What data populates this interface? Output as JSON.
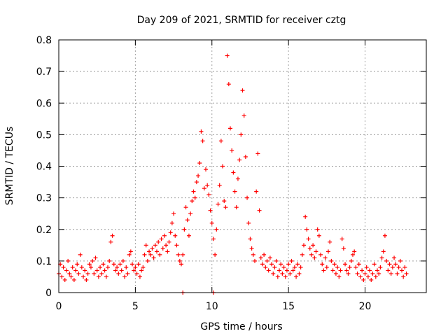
{
  "chart_data": {
    "type": "scatter",
    "title": "Day 209 of 2021, SRMTID for receiver cztg",
    "xlabel": "GPS time / hours",
    "ylabel": "SRMTID / TECUs",
    "xlim": [
      0,
      24
    ],
    "ylim": [
      0,
      0.8
    ],
    "x_ticks": [
      0,
      5,
      10,
      15,
      20
    ],
    "x_tick_labels": [
      "0",
      "5",
      "10",
      "15",
      "20"
    ],
    "y_ticks": [
      0,
      0.1,
      0.2,
      0.3,
      0.4,
      0.5,
      0.6,
      0.7,
      0.8
    ],
    "y_tick_labels": [
      "0",
      "0.1",
      "0.2",
      "0.3",
      "0.4",
      "0.5",
      "0.6",
      "0.7",
      "0.8"
    ],
    "grid": true,
    "marker": "+",
    "color": "#ff0000",
    "series": [
      {
        "name": "SRMTID",
        "points": [
          [
            0.0,
            0.06
          ],
          [
            0.1,
            0.09
          ],
          [
            0.2,
            0.05
          ],
          [
            0.3,
            0.08
          ],
          [
            0.4,
            0.04
          ],
          [
            0.5,
            0.07
          ],
          [
            0.6,
            0.1
          ],
          [
            0.7,
            0.06
          ],
          [
            0.8,
            0.05
          ],
          [
            0.9,
            0.08
          ],
          [
            1.0,
            0.04
          ],
          [
            1.1,
            0.07
          ],
          [
            1.2,
            0.09
          ],
          [
            1.3,
            0.06
          ],
          [
            1.4,
            0.12
          ],
          [
            1.5,
            0.08
          ],
          [
            1.6,
            0.05
          ],
          [
            1.7,
            0.07
          ],
          [
            1.8,
            0.04
          ],
          [
            1.9,
            0.06
          ],
          [
            2.0,
            0.09
          ],
          [
            2.1,
            0.08
          ],
          [
            2.2,
            0.1
          ],
          [
            2.3,
            0.06
          ],
          [
            2.4,
            0.11
          ],
          [
            2.5,
            0.07
          ],
          [
            2.6,
            0.05
          ],
          [
            2.7,
            0.08
          ],
          [
            2.8,
            0.06
          ],
          [
            2.9,
            0.09
          ],
          [
            3.0,
            0.07
          ],
          [
            3.1,
            0.05
          ],
          [
            3.2,
            0.08
          ],
          [
            3.3,
            0.1
          ],
          [
            3.4,
            0.16
          ],
          [
            3.5,
            0.18
          ],
          [
            3.6,
            0.09
          ],
          [
            3.7,
            0.07
          ],
          [
            3.8,
            0.08
          ],
          [
            3.9,
            0.06
          ],
          [
            4.0,
            0.09
          ],
          [
            4.1,
            0.07
          ],
          [
            4.2,
            0.1
          ],
          [
            4.3,
            0.05
          ],
          [
            4.4,
            0.08
          ],
          [
            4.5,
            0.06
          ],
          [
            4.6,
            0.12
          ],
          [
            4.7,
            0.13
          ],
          [
            4.8,
            0.09
          ],
          [
            4.9,
            0.07
          ],
          [
            5.0,
            0.08
          ],
          [
            5.1,
            0.06
          ],
          [
            5.2,
            0.09
          ],
          [
            5.3,
            0.05
          ],
          [
            5.4,
            0.07
          ],
          [
            5.5,
            0.08
          ],
          [
            5.6,
            0.12
          ],
          [
            5.7,
            0.15
          ],
          [
            5.8,
            0.1
          ],
          [
            5.9,
            0.13
          ],
          [
            6.0,
            0.12
          ],
          [
            6.1,
            0.14
          ],
          [
            6.2,
            0.11
          ],
          [
            6.3,
            0.15
          ],
          [
            6.4,
            0.13
          ],
          [
            6.5,
            0.16
          ],
          [
            6.6,
            0.12
          ],
          [
            6.7,
            0.17
          ],
          [
            6.8,
            0.14
          ],
          [
            6.9,
            0.18
          ],
          [
            7.0,
            0.15
          ],
          [
            7.1,
            0.13
          ],
          [
            7.2,
            0.16
          ],
          [
            7.3,
            0.19
          ],
          [
            7.4,
            0.22
          ],
          [
            7.5,
            0.25
          ],
          [
            7.6,
            0.18
          ],
          [
            7.7,
            0.15
          ],
          [
            7.8,
            0.12
          ],
          [
            7.9,
            0.1
          ],
          [
            8.0,
            0.09
          ],
          [
            8.1,
            0.12
          ],
          [
            8.2,
            0.2
          ],
          [
            8.3,
            0.27
          ],
          [
            8.4,
            0.23
          ],
          [
            8.5,
            0.18
          ],
          [
            8.6,
            0.25
          ],
          [
            8.7,
            0.29
          ],
          [
            8.8,
            0.32
          ],
          [
            8.9,
            0.3
          ],
          [
            9.0,
            0.35
          ],
          [
            9.1,
            0.37
          ],
          [
            9.2,
            0.41
          ],
          [
            9.3,
            0.51
          ],
          [
            9.4,
            0.48
          ],
          [
            9.5,
            0.33
          ],
          [
            9.6,
            0.39
          ],
          [
            9.7,
            0.34
          ],
          [
            9.8,
            0.31
          ],
          [
            9.9,
            0.26
          ],
          [
            10.0,
            0.22
          ],
          [
            10.1,
            0.17
          ],
          [
            10.2,
            0.12
          ],
          [
            10.3,
            0.2
          ],
          [
            10.4,
            0.28
          ],
          [
            10.5,
            0.34
          ],
          [
            10.6,
            0.48
          ],
          [
            10.7,
            0.4
          ],
          [
            10.8,
            0.29
          ],
          [
            10.9,
            0.27
          ],
          [
            11.0,
            0.75
          ],
          [
            11.1,
            0.66
          ],
          [
            11.2,
            0.52
          ],
          [
            11.3,
            0.45
          ],
          [
            11.4,
            0.38
          ],
          [
            11.5,
            0.32
          ],
          [
            11.6,
            0.27
          ],
          [
            11.7,
            0.36
          ],
          [
            11.8,
            0.42
          ],
          [
            11.9,
            0.5
          ],
          [
            12.0,
            0.64
          ],
          [
            12.1,
            0.56
          ],
          [
            12.2,
            0.43
          ],
          [
            12.3,
            0.3
          ],
          [
            12.4,
            0.22
          ],
          [
            12.5,
            0.17
          ],
          [
            12.6,
            0.14
          ],
          [
            12.7,
            0.12
          ],
          [
            12.8,
            0.1
          ],
          [
            12.9,
            0.32
          ],
          [
            13.0,
            0.44
          ],
          [
            13.1,
            0.26
          ],
          [
            13.2,
            0.11
          ],
          [
            13.3,
            0.09
          ],
          [
            13.4,
            0.12
          ],
          [
            13.5,
            0.08
          ],
          [
            13.6,
            0.1
          ],
          [
            13.7,
            0.07
          ],
          [
            13.8,
            0.11
          ],
          [
            13.9,
            0.09
          ],
          [
            14.0,
            0.06
          ],
          [
            14.1,
            0.08
          ],
          [
            14.2,
            0.1
          ],
          [
            14.3,
            0.05
          ],
          [
            14.4,
            0.07
          ],
          [
            14.5,
            0.09
          ],
          [
            14.6,
            0.06
          ],
          [
            14.7,
            0.08
          ],
          [
            14.8,
            0.05
          ],
          [
            14.9,
            0.07
          ],
          [
            15.0,
            0.09
          ],
          [
            15.1,
            0.06
          ],
          [
            15.2,
            0.1
          ],
          [
            15.3,
            0.07
          ],
          [
            15.4,
            0.08
          ],
          [
            15.5,
            0.05
          ],
          [
            15.6,
            0.09
          ],
          [
            15.7,
            0.06
          ],
          [
            15.8,
            0.08
          ],
          [
            15.9,
            0.12
          ],
          [
            16.0,
            0.15
          ],
          [
            16.1,
            0.24
          ],
          [
            16.2,
            0.2
          ],
          [
            16.3,
            0.17
          ],
          [
            16.4,
            0.14
          ],
          [
            16.5,
            0.12
          ],
          [
            16.6,
            0.15
          ],
          [
            16.7,
            0.11
          ],
          [
            16.8,
            0.13
          ],
          [
            16.9,
            0.2
          ],
          [
            17.0,
            0.18
          ],
          [
            17.1,
            0.12
          ],
          [
            17.2,
            0.09
          ],
          [
            17.3,
            0.07
          ],
          [
            17.4,
            0.11
          ],
          [
            17.5,
            0.08
          ],
          [
            17.6,
            0.13
          ],
          [
            17.7,
            0.16
          ],
          [
            17.8,
            0.1
          ],
          [
            17.9,
            0.07
          ],
          [
            18.0,
            0.09
          ],
          [
            18.1,
            0.06
          ],
          [
            18.2,
            0.08
          ],
          [
            18.3,
            0.05
          ],
          [
            18.4,
            0.07
          ],
          [
            18.5,
            0.17
          ],
          [
            18.6,
            0.14
          ],
          [
            18.7,
            0.09
          ],
          [
            18.8,
            0.07
          ],
          [
            18.9,
            0.06
          ],
          [
            19.0,
            0.08
          ],
          [
            19.1,
            0.1
          ],
          [
            19.2,
            0.12
          ],
          [
            19.3,
            0.13
          ],
          [
            19.4,
            0.08
          ],
          [
            19.5,
            0.06
          ],
          [
            19.6,
            0.09
          ],
          [
            19.7,
            0.05
          ],
          [
            19.8,
            0.07
          ],
          [
            19.9,
            0.04
          ],
          [
            20.0,
            0.06
          ],
          [
            20.1,
            0.08
          ],
          [
            20.2,
            0.05
          ],
          [
            20.3,
            0.07
          ],
          [
            20.4,
            0.04
          ],
          [
            20.5,
            0.06
          ],
          [
            20.6,
            0.09
          ],
          [
            20.7,
            0.05
          ],
          [
            20.8,
            0.07
          ],
          [
            20.9,
            0.06
          ],
          [
            21.0,
            0.08
          ],
          [
            21.1,
            0.11
          ],
          [
            21.2,
            0.13
          ],
          [
            21.3,
            0.18
          ],
          [
            21.4,
            0.1
          ],
          [
            21.5,
            0.07
          ],
          [
            21.6,
            0.09
          ],
          [
            21.7,
            0.06
          ],
          [
            21.8,
            0.08
          ],
          [
            21.9,
            0.11
          ],
          [
            22.0,
            0.09
          ],
          [
            22.1,
            0.06
          ],
          [
            22.2,
            0.08
          ],
          [
            22.3,
            0.1
          ],
          [
            22.4,
            0.07
          ],
          [
            22.5,
            0.05
          ],
          [
            22.6,
            0.08
          ],
          [
            22.7,
            0.06
          ],
          [
            8.1,
            0.0
          ],
          [
            10.1,
            0.0
          ]
        ]
      }
    ]
  }
}
